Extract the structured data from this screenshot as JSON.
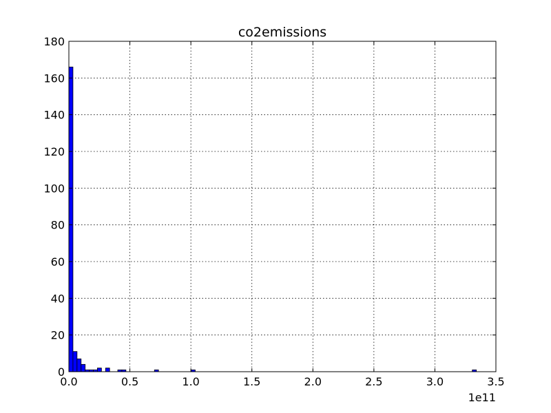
{
  "chart_data": {
    "type": "bar",
    "title": "co2emissions",
    "xlabel": "",
    "ylabel": "",
    "x_offset_label": "1e11",
    "xlim": [
      0,
      3.5
    ],
    "ylim": [
      0,
      180
    ],
    "grid": true,
    "x_ticks": [
      0.0,
      0.5,
      1.0,
      1.5,
      2.0,
      2.5,
      3.0,
      3.5
    ],
    "x_tick_labels": [
      "0.0",
      "0.5",
      "1.0",
      "1.5",
      "2.0",
      "2.5",
      "3.0",
      "3.5"
    ],
    "y_ticks": [
      0,
      20,
      40,
      60,
      80,
      100,
      120,
      140,
      160,
      180
    ],
    "y_tick_labels": [
      "0",
      "20",
      "40",
      "60",
      "80",
      "100",
      "120",
      "140",
      "160",
      "180"
    ],
    "bin_width": 0.0334,
    "bars": [
      {
        "x": 0.0,
        "count": 166
      },
      {
        "x": 0.0334,
        "count": 11
      },
      {
        "x": 0.0668,
        "count": 7
      },
      {
        "x": 0.1002,
        "count": 4
      },
      {
        "x": 0.1336,
        "count": 1
      },
      {
        "x": 0.167,
        "count": 1
      },
      {
        "x": 0.2004,
        "count": 1
      },
      {
        "x": 0.2338,
        "count": 2
      },
      {
        "x": 0.3006,
        "count": 2
      },
      {
        "x": 0.4008,
        "count": 1
      },
      {
        "x": 0.4342,
        "count": 1
      },
      {
        "x": 0.7014,
        "count": 1
      },
      {
        "x": 1.002,
        "count": 1
      },
      {
        "x": 3.3066,
        "count": 1
      }
    ],
    "colors": {
      "bar_fill": "#0000ff",
      "bar_edge": "#000000"
    }
  }
}
